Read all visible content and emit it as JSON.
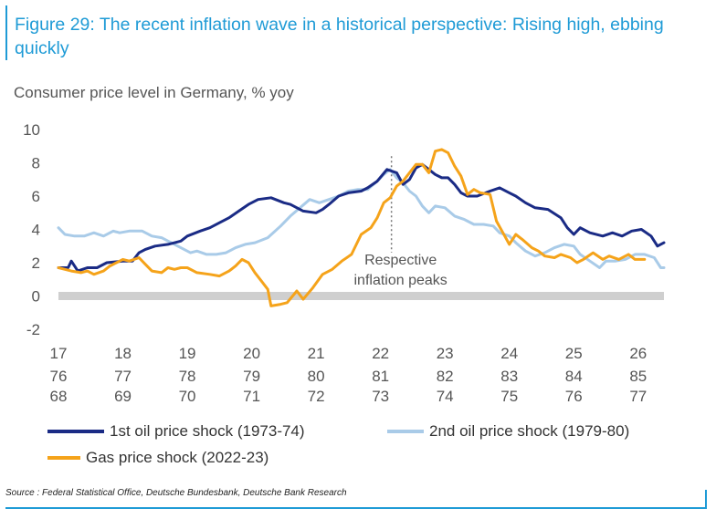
{
  "header": {
    "title": "Figure 29: The recent inflation wave in a historical perspective: Rising high, ebbing quickly",
    "subtitle": "Consumer price level in Germany, % yoy"
  },
  "annotation": {
    "line1": "Respective",
    "line2": "inflation peaks"
  },
  "legend": [
    {
      "label": "1st oil price shock (1973-74)",
      "color": "#1a2b85"
    },
    {
      "label": "2nd oil price shock (1979-80)",
      "color": "#a9cbe8"
    },
    {
      "label": "Gas price shock (2022-23)",
      "color": "#f5a31a"
    }
  ],
  "source": "Source : Federal Statistical Office, Deutsche Bundesbank, Deutsche Bank Research",
  "chart_data": {
    "type": "line",
    "ylim": [
      -2,
      10
    ],
    "y_ticks": [
      "10",
      "8",
      "6",
      "4",
      "2",
      "0",
      "-2"
    ],
    "x_rows": [
      [
        "17",
        "18",
        "19",
        "20",
        "21",
        "22",
        "23",
        "24",
        "25",
        "26"
      ],
      [
        "76",
        "77",
        "78",
        "79",
        "80",
        "81",
        "82",
        "83",
        "84",
        "85"
      ],
      [
        "68",
        "69",
        "70",
        "71",
        "72",
        "73",
        "74",
        "75",
        "76",
        "77"
      ]
    ],
    "xlim": [
      17,
      26.4
    ],
    "peak_x": 22.17,
    "series": [
      {
        "name": "1st oil price shock (1973-74)",
        "color": "#1a2b85",
        "points": [
          [
            17.0,
            1.7
          ],
          [
            17.15,
            1.7
          ],
          [
            17.2,
            2.1
          ],
          [
            17.3,
            1.5
          ],
          [
            17.45,
            1.7
          ],
          [
            17.6,
            1.7
          ],
          [
            17.75,
            2.0
          ],
          [
            18.0,
            2.1
          ],
          [
            18.15,
            2.1
          ],
          [
            18.25,
            2.6
          ],
          [
            18.35,
            2.8
          ],
          [
            18.5,
            3.0
          ],
          [
            18.7,
            3.1
          ],
          [
            18.9,
            3.3
          ],
          [
            19.0,
            3.6
          ],
          [
            19.2,
            3.9
          ],
          [
            19.35,
            4.1
          ],
          [
            19.5,
            4.4
          ],
          [
            19.65,
            4.7
          ],
          [
            19.8,
            5.1
          ],
          [
            19.95,
            5.5
          ],
          [
            20.1,
            5.8
          ],
          [
            20.3,
            5.9
          ],
          [
            20.5,
            5.6
          ],
          [
            20.6,
            5.5
          ],
          [
            20.8,
            5.1
          ],
          [
            21.0,
            5.0
          ],
          [
            21.1,
            5.2
          ],
          [
            21.2,
            5.5
          ],
          [
            21.35,
            6.0
          ],
          [
            21.5,
            6.2
          ],
          [
            21.7,
            6.3
          ],
          [
            21.8,
            6.5
          ],
          [
            21.95,
            6.9
          ],
          [
            22.1,
            7.6
          ],
          [
            22.25,
            7.4
          ],
          [
            22.35,
            6.7
          ],
          [
            22.45,
            7.0
          ],
          [
            22.55,
            7.7
          ],
          [
            22.65,
            7.9
          ],
          [
            22.75,
            7.6
          ],
          [
            22.85,
            7.3
          ],
          [
            22.95,
            7.1
          ],
          [
            23.05,
            7.1
          ],
          [
            23.15,
            6.7
          ],
          [
            23.25,
            6.2
          ],
          [
            23.35,
            6.0
          ],
          [
            23.5,
            6.0
          ],
          [
            23.7,
            6.3
          ],
          [
            23.85,
            6.5
          ],
          [
            24.0,
            6.2
          ],
          [
            24.1,
            6.0
          ],
          [
            24.25,
            5.6
          ],
          [
            24.4,
            5.3
          ],
          [
            24.6,
            5.2
          ],
          [
            24.8,
            4.7
          ],
          [
            24.9,
            4.1
          ],
          [
            25.0,
            3.7
          ],
          [
            25.1,
            4.1
          ],
          [
            25.25,
            3.8
          ],
          [
            25.45,
            3.6
          ],
          [
            25.6,
            3.8
          ],
          [
            25.75,
            3.6
          ],
          [
            25.9,
            3.9
          ],
          [
            26.05,
            4.0
          ],
          [
            26.2,
            3.6
          ],
          [
            26.3,
            3.0
          ],
          [
            26.4,
            3.2
          ]
        ]
      },
      {
        "name": "2nd oil price shock (1979-80)",
        "color": "#a9cbe8",
        "points": [
          [
            17.0,
            4.1
          ],
          [
            17.1,
            3.7
          ],
          [
            17.25,
            3.6
          ],
          [
            17.4,
            3.6
          ],
          [
            17.55,
            3.8
          ],
          [
            17.7,
            3.6
          ],
          [
            17.85,
            3.9
          ],
          [
            17.95,
            3.8
          ],
          [
            18.1,
            3.9
          ],
          [
            18.3,
            3.9
          ],
          [
            18.45,
            3.6
          ],
          [
            18.6,
            3.5
          ],
          [
            18.75,
            3.2
          ],
          [
            18.9,
            2.9
          ],
          [
            19.05,
            2.6
          ],
          [
            19.15,
            2.7
          ],
          [
            19.3,
            2.5
          ],
          [
            19.45,
            2.5
          ],
          [
            19.6,
            2.6
          ],
          [
            19.75,
            2.9
          ],
          [
            19.9,
            3.1
          ],
          [
            20.05,
            3.2
          ],
          [
            20.25,
            3.5
          ],
          [
            20.45,
            4.2
          ],
          [
            20.6,
            4.8
          ],
          [
            20.75,
            5.3
          ],
          [
            20.9,
            5.8
          ],
          [
            21.05,
            5.6
          ],
          [
            21.2,
            5.8
          ],
          [
            21.35,
            6.0
          ],
          [
            21.5,
            6.3
          ],
          [
            21.65,
            6.4
          ],
          [
            21.8,
            6.4
          ],
          [
            21.95,
            6.9
          ],
          [
            22.05,
            7.3
          ],
          [
            22.15,
            7.6
          ],
          [
            22.25,
            7.1
          ],
          [
            22.35,
            6.8
          ],
          [
            22.45,
            6.3
          ],
          [
            22.55,
            6.0
          ],
          [
            22.65,
            5.4
          ],
          [
            22.75,
            5.0
          ],
          [
            22.85,
            5.4
          ],
          [
            23.0,
            5.3
          ],
          [
            23.15,
            4.8
          ],
          [
            23.3,
            4.6
          ],
          [
            23.45,
            4.3
          ],
          [
            23.6,
            4.3
          ],
          [
            23.75,
            4.2
          ],
          [
            23.85,
            3.8
          ],
          [
            24.0,
            3.6
          ],
          [
            24.1,
            3.2
          ],
          [
            24.25,
            2.7
          ],
          [
            24.4,
            2.4
          ],
          [
            24.55,
            2.6
          ],
          [
            24.7,
            2.9
          ],
          [
            24.85,
            3.1
          ],
          [
            25.0,
            3.0
          ],
          [
            25.1,
            2.5
          ],
          [
            25.25,
            2.1
          ],
          [
            25.4,
            1.7
          ],
          [
            25.5,
            2.1
          ],
          [
            25.65,
            2.1
          ],
          [
            25.8,
            2.2
          ],
          [
            25.95,
            2.5
          ],
          [
            26.1,
            2.5
          ],
          [
            26.25,
            2.3
          ],
          [
            26.35,
            1.7
          ],
          [
            26.4,
            1.7
          ]
        ]
      },
      {
        "name": "Gas price shock (2022-23)",
        "color": "#f5a31a",
        "points": [
          [
            17.0,
            1.7
          ],
          [
            17.1,
            1.6
          ],
          [
            17.2,
            1.5
          ],
          [
            17.35,
            1.4
          ],
          [
            17.45,
            1.5
          ],
          [
            17.55,
            1.3
          ],
          [
            17.7,
            1.5
          ],
          [
            17.8,
            1.8
          ],
          [
            17.9,
            2.0
          ],
          [
            18.0,
            2.2
          ],
          [
            18.1,
            2.1
          ],
          [
            18.25,
            2.3
          ],
          [
            18.35,
            1.9
          ],
          [
            18.45,
            1.5
          ],
          [
            18.6,
            1.4
          ],
          [
            18.7,
            1.7
          ],
          [
            18.8,
            1.6
          ],
          [
            18.9,
            1.7
          ],
          [
            19.0,
            1.7
          ],
          [
            19.15,
            1.4
          ],
          [
            19.35,
            1.3
          ],
          [
            19.5,
            1.2
          ],
          [
            19.65,
            1.5
          ],
          [
            19.75,
            1.8
          ],
          [
            19.85,
            2.2
          ],
          [
            19.95,
            2.0
          ],
          [
            20.05,
            1.4
          ],
          [
            20.15,
            0.9
          ],
          [
            20.25,
            0.4
          ],
          [
            20.3,
            -0.6
          ],
          [
            20.45,
            -0.5
          ],
          [
            20.55,
            -0.4
          ],
          [
            20.7,
            0.3
          ],
          [
            20.8,
            -0.2
          ],
          [
            20.95,
            0.5
          ],
          [
            21.1,
            1.3
          ],
          [
            21.25,
            1.6
          ],
          [
            21.4,
            2.1
          ],
          [
            21.55,
            2.5
          ],
          [
            21.7,
            3.7
          ],
          [
            21.85,
            4.1
          ],
          [
            21.95,
            4.7
          ],
          [
            22.05,
            5.6
          ],
          [
            22.15,
            5.9
          ],
          [
            22.25,
            6.6
          ],
          [
            22.35,
            6.9
          ],
          [
            22.45,
            7.4
          ],
          [
            22.55,
            7.9
          ],
          [
            22.65,
            7.9
          ],
          [
            22.75,
            7.4
          ],
          [
            22.85,
            8.7
          ],
          [
            22.95,
            8.8
          ],
          [
            23.05,
            8.6
          ],
          [
            23.15,
            7.8
          ],
          [
            23.25,
            7.2
          ],
          [
            23.35,
            6.1
          ],
          [
            23.45,
            6.4
          ],
          [
            23.55,
            6.2
          ],
          [
            23.7,
            6.1
          ],
          [
            23.8,
            4.5
          ],
          [
            23.9,
            3.8
          ],
          [
            24.0,
            3.1
          ],
          [
            24.1,
            3.7
          ],
          [
            24.2,
            3.4
          ],
          [
            24.35,
            2.9
          ],
          [
            24.45,
            2.7
          ],
          [
            24.55,
            2.4
          ],
          [
            24.7,
            2.3
          ],
          [
            24.8,
            2.5
          ],
          [
            24.95,
            2.3
          ],
          [
            25.05,
            2.0
          ],
          [
            25.15,
            2.2
          ],
          [
            25.3,
            2.6
          ],
          [
            25.45,
            2.2
          ],
          [
            25.55,
            2.4
          ],
          [
            25.7,
            2.2
          ],
          [
            25.85,
            2.5
          ],
          [
            25.95,
            2.2
          ],
          [
            26.1,
            2.2
          ]
        ]
      }
    ]
  }
}
